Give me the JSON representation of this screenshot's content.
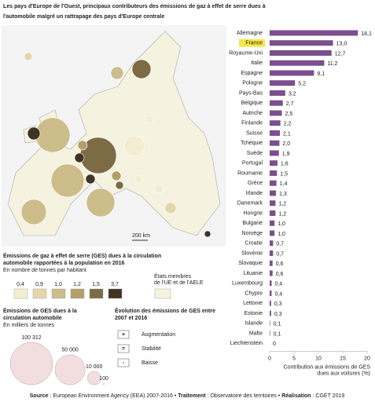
{
  "title": [
    "Les pays d'Europe de l'Ouest, principaux contributeurs des émissions de gaz à effet de serre dues à",
    "l'automobile malgré un rattrapage des pays d'Europe centrale"
  ],
  "chart_data": {
    "type": "barh",
    "categories": [
      "Allemagne",
      "France",
      "Royaume-Uni",
      "Italie",
      "Espagne",
      "Pologne",
      "Pays-Bas",
      "Belgique",
      "Autriche",
      "Finlande",
      "Suisse",
      "Tchéquie",
      "Suède",
      "Portugal",
      "Roumanie",
      "Grèce",
      "Irlande",
      "Danemark",
      "Hongrie",
      "Bulgarie",
      "Norvège",
      "Croatie",
      "Slovénie",
      "Slovaquie",
      "Lituanie",
      "Luxembourg",
      "Chypre",
      "Lettonie",
      "Estonie",
      "Islande",
      "Malte",
      "Liechtenstein"
    ],
    "values": [
      18.1,
      13.0,
      12.7,
      11.2,
      9.1,
      5.2,
      3.2,
      2.7,
      2.5,
      2.2,
      2.1,
      2.0,
      1.9,
      1.6,
      1.5,
      1.4,
      1.3,
      1.2,
      1.2,
      1.0,
      1.0,
      0.7,
      0.7,
      0.6,
      0.6,
      0.4,
      0.4,
      0.3,
      0.3,
      0.1,
      0.1,
      0
    ],
    "value_labels": [
      "18,1",
      "13,0",
      "12,7",
      "11,2",
      "9,1",
      "5,2",
      "3,2",
      "2,7",
      "2,5",
      "2,2",
      "2,1",
      "2,0",
      "1,9",
      "1,6",
      "1,5",
      "1,4",
      "1,3",
      "1,2",
      "1,2",
      "1,0",
      "1,0",
      "0,7",
      "0,7",
      "0,6",
      "0,6",
      "0,4",
      "0,4",
      "0,3",
      "0,3",
      "0,1",
      "0,1",
      "0"
    ],
    "color": "#7b4f8e",
    "highlight": "France",
    "highlight_color": "#f6e84a",
    "xlim": [
      0,
      20
    ],
    "xticks": [
      0,
      5,
      10,
      15,
      20
    ],
    "xlabel": [
      "Contribution aux émissions de GES",
      "dues aux voitures (%)"
    ]
  },
  "map_scale": "200 km",
  "class_legend": {
    "title": [
      "Émissions de gaz à effet de serre (GES) dues à la circulation",
      "automobile rapportées à la population en 2016"
    ],
    "subtitle": "En nombre de tonnes par habitant",
    "classes": [
      "0,4",
      "0,9",
      "1,0",
      "1,2",
      "1,5",
      "3,7"
    ],
    "colors": [
      "#f3eed2",
      "#e2d6aa",
      "#cdbd8a",
      "#b39f6a",
      "#7d6b45",
      "#3f3322"
    ],
    "members": [
      "États membres",
      "de l'UE et de l'AELE"
    ],
    "members_color": "#f5f3df"
  },
  "size_legend": {
    "title": [
      "Émissions de GES dues à la",
      "circulation automobile"
    ],
    "subtitle": "En milliers de tonnes",
    "items": [
      {
        "value": 100312,
        "label": "100 312"
      },
      {
        "value": 50000,
        "label": "50 000"
      },
      {
        "value": 10000,
        "label": "10 000"
      },
      {
        "value": 100,
        "label": "100"
      }
    ],
    "color": "#f2dede"
  },
  "evolution_legend": {
    "title": [
      "Évolution des émissions de GES entre",
      "2007 et 2016"
    ],
    "items": [
      {
        "symbol": "+",
        "label": "Augmentation"
      },
      {
        "symbol": "=",
        "label": "Stabilité"
      },
      {
        "symbol": "-",
        "label": "Baisse"
      }
    ]
  },
  "footer": [
    {
      "bold": "Source",
      "text": " : European Environment Agency (EEA) 2007-2016 • "
    },
    {
      "bold": "Traitement",
      "text": " : Observatoire des territoires • "
    },
    {
      "bold": "Réalisation",
      "text": " : CGET 2019"
    }
  ]
}
